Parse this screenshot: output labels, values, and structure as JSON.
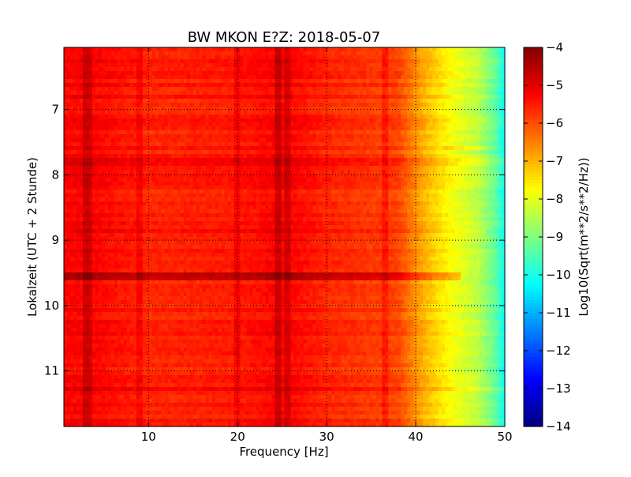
{
  "chart_data": {
    "type": "heatmap",
    "title": "BW MKON E?Z: 2018-05-07",
    "xlabel": "Frequency [Hz]",
    "ylabel": "Lokalzeit (UTC + 2 Stunde)",
    "xlim": [
      0.5,
      50
    ],
    "ylim": [
      11.85,
      6.05
    ],
    "x_ticks": [
      10,
      20,
      30,
      40,
      50
    ],
    "y_ticks": [
      7,
      8,
      9,
      10,
      11
    ],
    "grid": true,
    "colorbar": {
      "label": "Log10(Sqrt(m**2/s**2/Hz))",
      "range": [
        -14,
        -4
      ],
      "ticks": [
        -4,
        -5,
        -6,
        -7,
        -8,
        -9,
        -10,
        -11,
        -12,
        -13,
        -14
      ],
      "colormap": "jet"
    },
    "frequency_profile": [
      {
        "x": 0.5,
        "value": -5.3
      },
      {
        "x": 3,
        "value": -5.2
      },
      {
        "x": 10,
        "value": -5.6
      },
      {
        "x": 20,
        "value": -5.5
      },
      {
        "x": 25,
        "value": -5.2
      },
      {
        "x": 30,
        "value": -5.6
      },
      {
        "x": 38,
        "value": -5.9
      },
      {
        "x": 41,
        "value": -7.0
      },
      {
        "x": 44,
        "value": -7.8
      },
      {
        "x": 47,
        "value": -8.4
      },
      {
        "x": 49,
        "value": -9.3
      },
      {
        "x": 50,
        "value": -10.2
      }
    ],
    "vertical_features": [
      {
        "x": 3.0,
        "delta": 0.45
      },
      {
        "x": 3.5,
        "delta": 0.35
      },
      {
        "x": 9.0,
        "delta": 0.3
      },
      {
        "x": 20.0,
        "delta": 0.3
      },
      {
        "x": 24.5,
        "delta": 0.5
      },
      {
        "x": 25.5,
        "delta": 0.4
      },
      {
        "x": 36.5,
        "delta": 0.35
      }
    ],
    "horizontal_features": [
      {
        "y": 7.8,
        "delta": 0.5,
        "x_from": 0.5,
        "x_to": 50
      },
      {
        "y": 8.85,
        "delta": 0.35,
        "x_from": 0.5,
        "x_to": 48
      },
      {
        "y": 9.55,
        "delta": 0.9,
        "x_from": 0.5,
        "x_to": 45
      },
      {
        "y": 11.28,
        "delta": 0.4,
        "x_from": 0.5,
        "x_to": 50
      },
      {
        "y": 7.6,
        "delta": 0.25,
        "x_from": 43,
        "x_to": 48
      }
    ]
  }
}
